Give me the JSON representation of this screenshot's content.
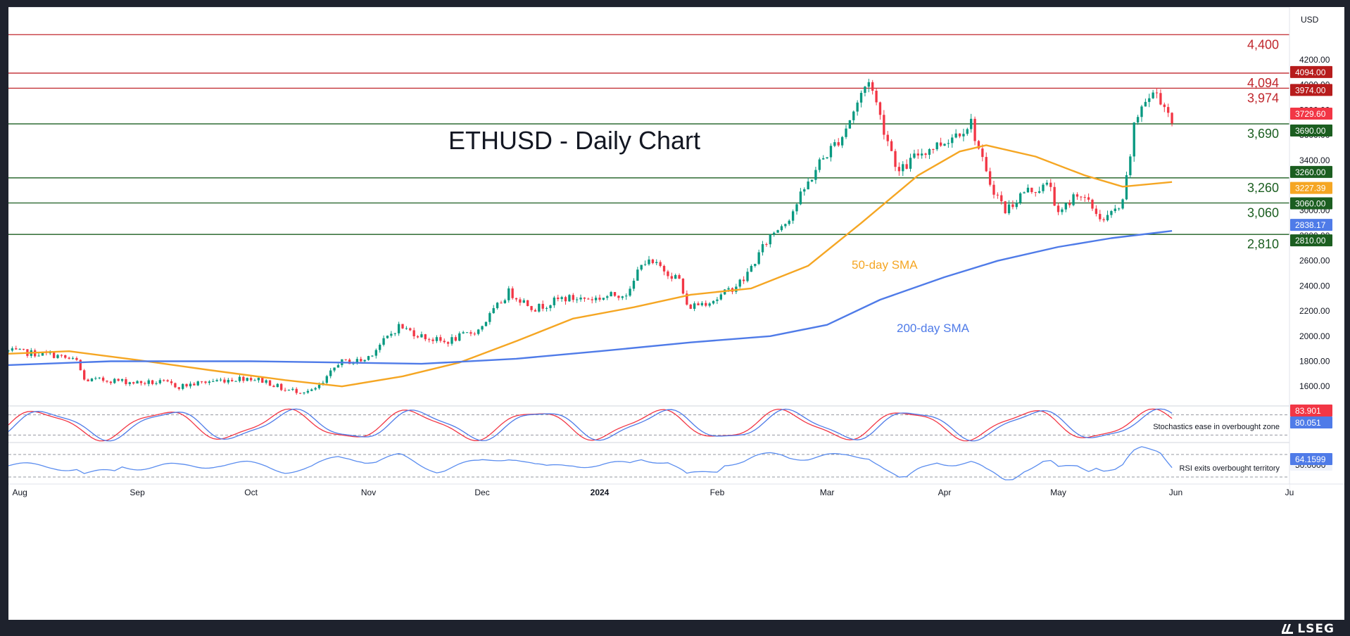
{
  "chart_data": [
    {
      "type": "candlestick",
      "title": "ETHUSD - Daily Chart",
      "currency": "USD",
      "x_labels": [
        "Aug",
        "Sep",
        "Oct",
        "Nov",
        "Dec",
        "2024",
        "Feb",
        "Mar",
        "Apr",
        "May",
        "Jun",
        "Ju"
      ],
      "x_range": [
        "2023-07-29",
        "2024-07-01"
      ],
      "ylim": [
        1450,
        4620
      ],
      "y_ticks": [
        1600,
        1800,
        2000,
        2200,
        2400,
        2600,
        2800,
        3000,
        3200,
        3400,
        3600,
        3800,
        4000,
        4200
      ],
      "y_tick_labels": [
        "1600.00",
        "1800.00",
        "2000.00",
        "2200.00",
        "2400.00",
        "2600.00",
        "2800.00",
        "3000.00",
        "3200.00",
        "3400.00",
        "3600.00",
        "3800.00",
        "4000.00",
        "4200.00"
      ],
      "close_path": [
        [
          "2023-07-29",
          1880
        ],
        [
          "2023-08-10",
          1850
        ],
        [
          "2023-08-16",
          1800
        ],
        [
          "2023-08-18",
          1650
        ],
        [
          "2023-08-25",
          1650
        ],
        [
          "2023-09-01",
          1630
        ],
        [
          "2023-09-08",
          1630
        ],
        [
          "2023-09-12",
          1600
        ],
        [
          "2023-09-20",
          1640
        ],
        [
          "2023-09-30",
          1670
        ],
        [
          "2023-10-05",
          1640
        ],
        [
          "2023-10-10",
          1570
        ],
        [
          "2023-10-17",
          1560
        ],
        [
          "2023-10-20",
          1620
        ],
        [
          "2023-10-24",
          1790
        ],
        [
          "2023-10-31",
          1810
        ],
        [
          "2023-11-09",
          2080
        ],
        [
          "2023-11-15",
          2000
        ],
        [
          "2023-11-21",
          1950
        ],
        [
          "2023-11-30",
          2050
        ],
        [
          "2023-12-08",
          2350
        ],
        [
          "2023-12-15",
          2220
        ],
        [
          "2023-12-22",
          2300
        ],
        [
          "2023-12-31",
          2300
        ],
        [
          "2024-01-09",
          2350
        ],
        [
          "2024-01-12",
          2600
        ],
        [
          "2024-01-17",
          2550
        ],
        [
          "2024-01-22",
          2450
        ],
        [
          "2024-01-24",
          2230
        ],
        [
          "2024-02-01",
          2300
        ],
        [
          "2024-02-08",
          2450
        ],
        [
          "2024-02-15",
          2800
        ],
        [
          "2024-02-20",
          2950
        ],
        [
          "2024-02-28",
          3380
        ],
        [
          "2024-03-05",
          3600
        ],
        [
          "2024-03-12",
          4050
        ],
        [
          "2024-03-16",
          3650
        ],
        [
          "2024-03-20",
          3300
        ],
        [
          "2024-03-25",
          3450
        ],
        [
          "2024-04-01",
          3550
        ],
        [
          "2024-04-08",
          3700
        ],
        [
          "2024-04-12",
          3280
        ],
        [
          "2024-04-17",
          3000
        ],
        [
          "2024-04-22",
          3150
        ],
        [
          "2024-04-29",
          3200
        ],
        [
          "2024-05-01",
          2950
        ],
        [
          "2024-05-06",
          3150
        ],
        [
          "2024-05-13",
          2920
        ],
        [
          "2024-05-18",
          3050
        ],
        [
          "2024-05-21",
          3650
        ],
        [
          "2024-05-23",
          3850
        ],
        [
          "2024-05-27",
          3940
        ],
        [
          "2024-05-31",
          3730
        ]
      ],
      "series": [
        {
          "name": "50-day SMA",
          "color": "#f5a623",
          "values": [
            [
              "2023-07-29",
              1860
            ],
            [
              "2023-08-14",
              1880
            ],
            [
              "2023-09-01",
              1810
            ],
            [
              "2023-09-20",
              1730
            ],
            [
              "2023-10-10",
              1650
            ],
            [
              "2023-10-25",
              1600
            ],
            [
              "2023-11-10",
              1680
            ],
            [
              "2023-11-25",
              1790
            ],
            [
              "2023-12-10",
              1960
            ],
            [
              "2023-12-25",
              2140
            ],
            [
              "2024-01-10",
              2230
            ],
            [
              "2024-01-25",
              2330
            ],
            [
              "2024-02-10",
              2380
            ],
            [
              "2024-02-25",
              2560
            ],
            [
              "2024-03-10",
              2900
            ],
            [
              "2024-03-25",
              3280
            ],
            [
              "2024-04-05",
              3470
            ],
            [
              "2024-04-12",
              3520
            ],
            [
              "2024-04-25",
              3430
            ],
            [
              "2024-05-08",
              3280
            ],
            [
              "2024-05-18",
              3190
            ],
            [
              "2024-05-31",
              3227
            ]
          ]
        },
        {
          "name": "200-day SMA",
          "color": "#4f7be8",
          "values": [
            [
              "2023-07-29",
              1770
            ],
            [
              "2023-08-25",
              1800
            ],
            [
              "2023-10-01",
              1800
            ],
            [
              "2023-10-25",
              1790
            ],
            [
              "2023-11-15",
              1780
            ],
            [
              "2023-12-10",
              1820
            ],
            [
              "2024-01-01",
              1880
            ],
            [
              "2024-01-25",
              1950
            ],
            [
              "2024-02-15",
              2000
            ],
            [
              "2024-03-01",
              2090
            ],
            [
              "2024-03-15",
              2290
            ],
            [
              "2024-04-01",
              2470
            ],
            [
              "2024-04-15",
              2600
            ],
            [
              "2024-05-01",
              2710
            ],
            [
              "2024-05-15",
              2780
            ],
            [
              "2024-05-31",
              2838
            ]
          ]
        }
      ],
      "horizontal_levels": [
        {
          "value": 4400,
          "label": "4,400",
          "color": "#c0272d"
        },
        {
          "value": 4094,
          "label": "4,094",
          "color": "#c0272d"
        },
        {
          "value": 3974,
          "label": "3,974",
          "color": "#c0272d"
        },
        {
          "value": 3690,
          "label": "3,690",
          "color": "#1b5e20"
        },
        {
          "value": 3260,
          "label": "3,260",
          "color": "#1b5e20"
        },
        {
          "value": 3060,
          "label": "3,060",
          "color": "#1b5e20"
        },
        {
          "value": 2810,
          "label": "2,810",
          "color": "#1b5e20"
        }
      ],
      "price_tags": [
        {
          "value": 4094,
          "label": "4094.00",
          "color": "#b71c1c"
        },
        {
          "value": 3974,
          "label": "3974.00",
          "color": "#b71c1c"
        },
        {
          "value": 3729.6,
          "label": "3729.60",
          "color": "#f23645"
        },
        {
          "value": 3690,
          "label": "3690.00",
          "color": "#1b5e20"
        },
        {
          "value": 3260,
          "label": "3260.00",
          "color": "#1b5e20"
        },
        {
          "value": 3227.39,
          "label": "3227.39",
          "color": "#f5a623"
        },
        {
          "value": 3060,
          "label": "3060.00",
          "color": "#1b5e20"
        },
        {
          "value": 2838.17,
          "label": "2838.17",
          "color": "#4f7be8"
        },
        {
          "value": 2810,
          "label": "2810.00",
          "color": "#1b5e20"
        }
      ],
      "annotations": [
        {
          "text": "50-day SMA",
          "color": "#f5a623"
        },
        {
          "text": "200-day SMA",
          "color": "#4f7be8"
        }
      ]
    },
    {
      "type": "line",
      "name": "Stochastics",
      "ylim": [
        0,
        100
      ],
      "reference_levels": [
        80,
        20
      ],
      "tags": [
        {
          "label": "83.901",
          "color": "#f23645"
        },
        {
          "label": "80.051",
          "color": "#4f7be8"
        }
      ],
      "annotation": "Stochastics ease in overbought zone"
    },
    {
      "type": "line",
      "name": "RSI",
      "ylim": [
        20,
        90
      ],
      "reference_levels": [
        70,
        30
      ],
      "tags": [
        {
          "label": "64.1599",
          "color": "#4f7be8"
        },
        {
          "label": "50.0000",
          "color": "#f0f3fa"
        }
      ],
      "annotation": "RSI exits overbought territory"
    }
  ],
  "branding": {
    "logo_text": "LSEG"
  }
}
